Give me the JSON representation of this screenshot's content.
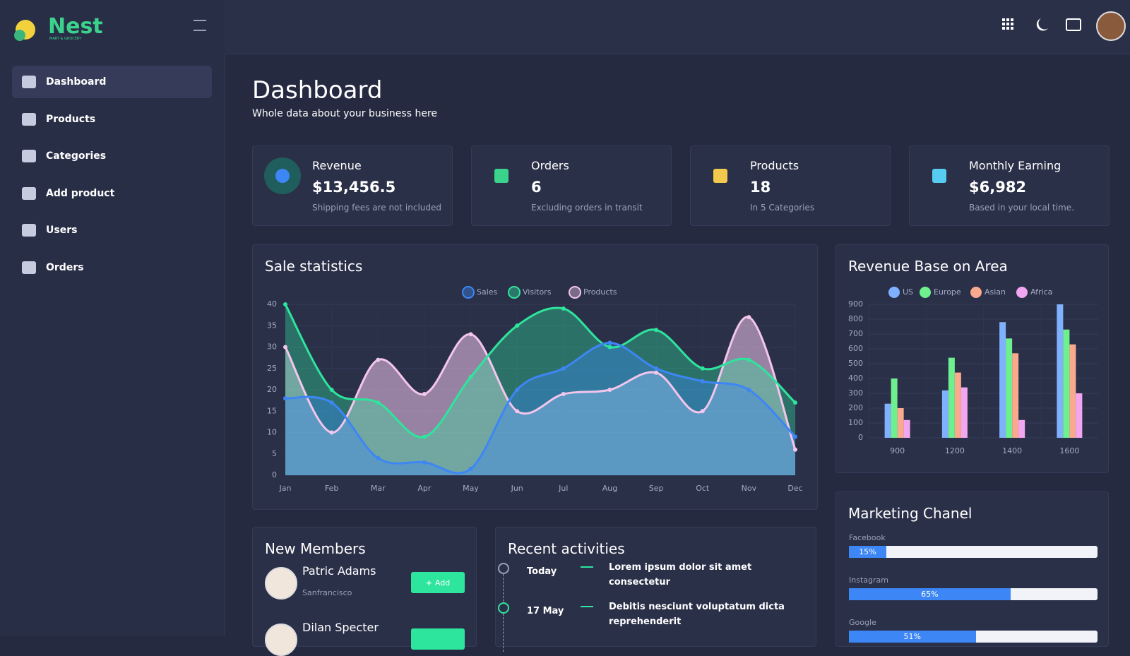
{
  "brand": {
    "name": "Nest",
    "tagline": "MART & GROCERY"
  },
  "sidebar": {
    "items": [
      "Dashboard",
      "Products",
      "Categories",
      "Add product",
      "Users",
      "Orders"
    ]
  },
  "header": {
    "title": "Dashboard",
    "subtitle": "Whole data about your business here"
  },
  "cards": [
    {
      "label": "Revenue",
      "value": "$13,456.5",
      "note": "Shipping fees are not included"
    },
    {
      "label": "Orders",
      "value": "6",
      "note": "Excluding orders in transit"
    },
    {
      "label": "Products",
      "value": "18",
      "note": "In 5 Categories"
    },
    {
      "label": "Monthly Earning",
      "value": "$6,982",
      "note": "Based in your local time."
    }
  ],
  "sale_statistics": {
    "type": "line",
    "title": "Sale statistics",
    "categories": [
      "Jan",
      "Feb",
      "Mar",
      "Apr",
      "May",
      "Jun",
      "Jul",
      "Aug",
      "Sep",
      "Oct",
      "Nov",
      "Dec"
    ],
    "series": [
      {
        "name": "Sales",
        "color": "#3d86f5",
        "values": [
          18,
          17,
          4,
          3,
          1.5,
          20,
          25,
          31,
          25,
          22,
          20,
          9
        ]
      },
      {
        "name": "Visitors",
        "color": "#2ee59d",
        "values": [
          40,
          20,
          17,
          9,
          23,
          35,
          39,
          30,
          34,
          25,
          27,
          17
        ]
      },
      {
        "name": "Products",
        "color": "#f3c6ec",
        "values": [
          30,
          10,
          27,
          19,
          33,
          15,
          19,
          20,
          24,
          15,
          37,
          6
        ]
      }
    ],
    "ylim": [
      0,
      40
    ],
    "yticks": [
      0,
      5,
      10,
      15,
      20,
      25,
      30,
      35,
      40
    ],
    "grid": true
  },
  "revenue_area": {
    "type": "bar",
    "title": "Revenue Base on Area",
    "categories": [
      "900",
      "1200",
      "1400",
      "1600"
    ],
    "series": [
      {
        "name": "US",
        "color": "#80b1ff",
        "values": [
          230,
          320,
          780,
          900
        ]
      },
      {
        "name": "Europe",
        "color": "#6ff08f",
        "values": [
          400,
          540,
          670,
          730
        ]
      },
      {
        "name": "Asian",
        "color": "#f9a98d",
        "values": [
          200,
          440,
          570,
          630
        ]
      },
      {
        "name": "Africa",
        "color": "#f3a6f0",
        "values": [
          120,
          340,
          120,
          300
        ]
      }
    ],
    "ylim": [
      0,
      900
    ],
    "yticks": [
      0,
      100,
      200,
      300,
      400,
      500,
      600,
      700,
      800,
      900
    ],
    "grid": true
  },
  "marketing": {
    "title": "Marketing Chanel",
    "channels": [
      "Facebook",
      "Instagram",
      "Google"
    ],
    "values": [
      15,
      65,
      51
    ],
    "value_labels": [
      "15%",
      "65%",
      "51%"
    ],
    "color": "#3d86f5"
  },
  "members": {
    "title": "New Members",
    "button": "Add",
    "items": [
      {
        "name": "Patric Adams",
        "location": "Sanfrancisco"
      },
      {
        "name": "Dilan Specter"
      }
    ]
  },
  "activities": {
    "title": "Recent activities",
    "items": [
      {
        "date": "Today",
        "text": "Lorem ipsum dolor sit amet consectetur"
      },
      {
        "date": "17 May",
        "text": "Debitis nesciunt voluptatum dicta reprehenderit"
      }
    ]
  }
}
